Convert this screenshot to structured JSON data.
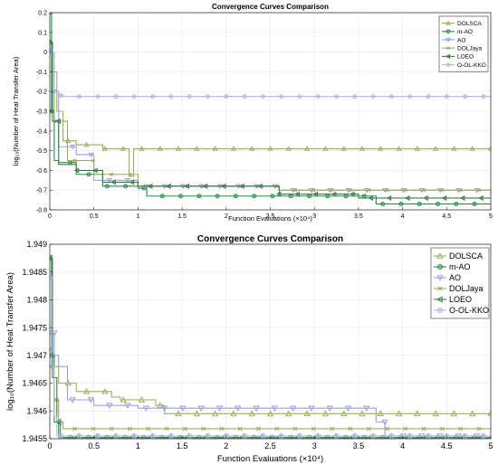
{
  "chart_data": [
    {
      "type": "line",
      "title": "Convergence Curves Comparison",
      "xlabel": "Function Evaluations (×10⁴)",
      "ylabel": "log₁₀(Number of Heat Transfer Area)",
      "xlim": [
        0,
        5
      ],
      "ylim": [
        -0.8,
        0.2
      ],
      "xticks": [
        0,
        0.5,
        1,
        1.5,
        2,
        2.5,
        3,
        3.5,
        4,
        4.5,
        5
      ],
      "xtick_labels": [
        "0",
        "0.5",
        "1",
        "1.5",
        "2",
        "2.5",
        "3",
        "3.5",
        "4",
        "4.5",
        "5"
      ],
      "yticks": [
        0.2,
        0.1,
        0,
        -0.1,
        -0.2,
        -0.3,
        -0.4,
        -0.5,
        -0.6,
        -0.7,
        -0.8
      ],
      "ytick_labels": [
        "0.2",
        "0.1",
        "0",
        "-0.1",
        "-0.2",
        "-0.3",
        "-0.4",
        "-0.5",
        "-0.6",
        "-0.7",
        "-0.8"
      ],
      "grid": true,
      "legend_position": "top-right",
      "series": [
        {
          "name": "DOLSCA",
          "color": "#9aaf5a",
          "marker": "triangle-up",
          "x": [
            0,
            0.03,
            0.08,
            0.15,
            0.3,
            0.6,
            0.9,
            0.95,
            5
          ],
          "y": [
            0.05,
            -0.1,
            -0.3,
            -0.45,
            -0.47,
            -0.49,
            -0.63,
            -0.49,
            -0.49
          ]
        },
        {
          "name": "m-AO",
          "color": "#2a8a4a",
          "marker": "circle",
          "x": [
            0,
            0.02,
            0.05,
            0.1,
            0.3,
            0.6,
            1.0,
            1.1,
            2.5,
            3.7,
            5
          ],
          "y": [
            0.2,
            -0.3,
            -0.55,
            -0.56,
            -0.62,
            -0.68,
            -0.69,
            -0.73,
            -0.73,
            -0.77,
            -0.77
          ]
        },
        {
          "name": "AO",
          "color": "#9aa0e0",
          "marker": "triangle-down",
          "x": [
            0,
            0.03,
            0.1,
            0.3,
            0.5,
            1.0,
            2.6,
            5
          ],
          "y": [
            0.02,
            -0.2,
            -0.48,
            -0.52,
            -0.65,
            -0.68,
            -0.7,
            -0.71
          ]
        },
        {
          "name": "DOLJaya",
          "color": "#a0a860",
          "marker": "x",
          "x": [
            0,
            0.05,
            0.2,
            0.5,
            1.0,
            2.6,
            5
          ],
          "y": [
            0.0,
            -0.35,
            -0.55,
            -0.62,
            -0.68,
            -0.7,
            -0.72
          ]
        },
        {
          "name": "LOEO",
          "color": "#3a7a4a",
          "marker": "triangle-left",
          "x": [
            0,
            0.03,
            0.1,
            0.3,
            0.6,
            1.0,
            2.6,
            3.5,
            5
          ],
          "y": [
            0.05,
            -0.35,
            -0.57,
            -0.6,
            -0.66,
            -0.68,
            -0.72,
            -0.74,
            -0.74
          ]
        },
        {
          "name": "O-OL-KKO",
          "color": "#b0b6e0",
          "marker": "circle",
          "x": [
            0,
            0.05,
            0.1,
            0.15,
            5
          ],
          "y": [
            0.0,
            -0.2,
            -0.22,
            -0.225,
            -0.225
          ]
        }
      ]
    },
    {
      "type": "line",
      "title": "Convergence Curves Comparison",
      "xlabel": "Function Evaluations (×10⁴)",
      "ylabel": "log₁₀(Number of Heat Transfer Area)",
      "xlim": [
        0,
        5
      ],
      "ylim": [
        1.9455,
        1.949
      ],
      "xticks": [
        0,
        0.5,
        1,
        1.5,
        2,
        2.5,
        3,
        3.5,
        4,
        4.5,
        5
      ],
      "xtick_labels": [
        "0",
        "0.5",
        "1",
        "1.5",
        "2",
        "2.5",
        "3",
        "3.5",
        "4",
        "4.5",
        "5"
      ],
      "yticks": [
        1.949,
        1.9485,
        1.948,
        1.9475,
        1.947,
        1.9465,
        1.946,
        1.9455
      ],
      "ytick_labels": [
        "1.949",
        "1.9485",
        "1.948",
        "1.9475",
        "1.947",
        "1.9465",
        "1.946",
        "1.9455"
      ],
      "grid": true,
      "legend_position": "top-right",
      "series": [
        {
          "name": "DOLSCA",
          "color": "#9aaf5a",
          "marker": "triangle-up",
          "x": [
            0,
            0.03,
            0.1,
            0.3,
            0.7,
            0.8,
            1.2,
            1.3,
            5
          ],
          "y": [
            1.9471,
            1.9468,
            1.9465,
            1.94635,
            1.94625,
            1.9462,
            1.9461,
            1.94595,
            1.94595
          ]
        },
        {
          "name": "m-AO",
          "color": "#2a8a4a",
          "marker": "circle",
          "x": [
            0,
            0.02,
            0.05,
            0.1,
            5
          ],
          "y": [
            1.94875,
            1.947,
            1.9458,
            1.94552,
            1.94552
          ]
        },
        {
          "name": "AO",
          "color": "#9aa0e0",
          "marker": "triangle-down",
          "x": [
            0,
            0.05,
            0.1,
            0.2,
            0.5,
            1.0,
            3.6,
            3.7,
            3.8,
            5
          ],
          "y": [
            1.9474,
            1.947,
            1.9468,
            1.9462,
            1.9461,
            1.94605,
            1.94605,
            1.9458,
            1.94555,
            1.94555
          ]
        },
        {
          "name": "DOLJaya",
          "color": "#a0a860",
          "marker": "x",
          "x": [
            0,
            0.05,
            0.1,
            0.15,
            5
          ],
          "y": [
            1.9468,
            1.9462,
            1.9458,
            1.94568,
            1.94568
          ]
        },
        {
          "name": "LOEO",
          "color": "#3a7a4a",
          "marker": "triangle-left",
          "x": [
            0,
            0.03,
            0.08,
            0.12,
            5
          ],
          "y": [
            1.94875,
            1.9466,
            1.9458,
            1.94552,
            1.94552
          ]
        },
        {
          "name": "O-OL-KKO",
          "color": "#b0b6e0",
          "marker": "circle",
          "x": [
            0,
            0.02,
            0.05,
            0.08,
            5
          ],
          "y": [
            1.9484,
            1.9468,
            1.9459,
            1.94555,
            1.94555
          ]
        }
      ]
    }
  ]
}
